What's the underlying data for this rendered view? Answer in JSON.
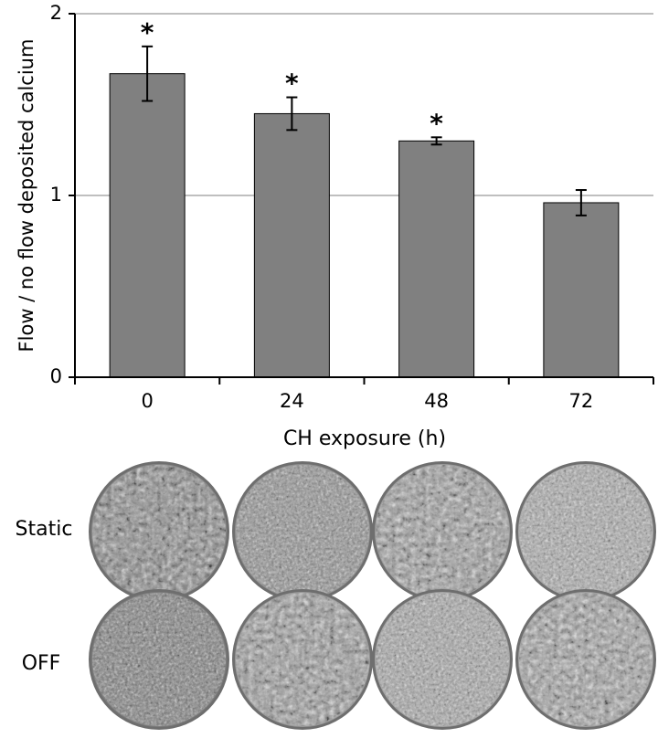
{
  "chart_data": {
    "type": "bar",
    "x_label": "CH exposure (h)",
    "y_label": "Flow / no flow deposited calcium",
    "categories": [
      "0",
      "24",
      "48",
      "72"
    ],
    "values": [
      1.67,
      1.45,
      1.3,
      0.96
    ],
    "errors": [
      0.15,
      0.09,
      0.02,
      0.07
    ],
    "significance": [
      "*",
      "*",
      "*",
      null
    ],
    "color": "#808080",
    "ylim": [
      0,
      2
    ],
    "yticks": [
      0,
      1,
      2
    ],
    "grid": true
  },
  "panel": {
    "rows": [
      "Static",
      "OFF"
    ]
  }
}
